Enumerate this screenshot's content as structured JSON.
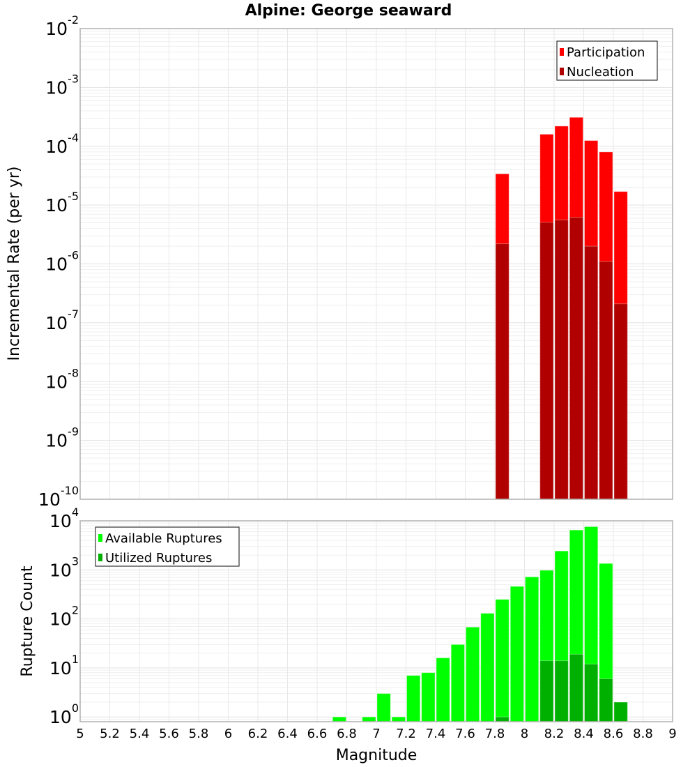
{
  "chart_data": [
    {
      "type": "bar",
      "title": "Alpine: George seaward",
      "xlabel": "Magnitude",
      "ylabel": "Incremental Rate (per yr)",
      "yscale": "log",
      "xlim": [
        5,
        9
      ],
      "ylim": [
        1e-10,
        0.01
      ],
      "ytick_exponents": [
        -2,
        -3,
        -4,
        -5,
        -6,
        -7,
        -8,
        -9,
        -10
      ],
      "grid": true,
      "legend_position": "top-right",
      "x": [
        7.85,
        8.15,
        8.25,
        8.35,
        8.45,
        8.55,
        8.65
      ],
      "series": [
        {
          "name": "Participation",
          "color": "#ff0000",
          "values": [
            3.4e-05,
            0.00016,
            0.00022,
            0.00031,
            0.000125,
            8e-05,
            1.7e-05
          ]
        },
        {
          "name": "Nucleation",
          "color": "#b00000",
          "values": [
            2.2e-06,
            5.1e-06,
            5.6e-06,
            6.2e-06,
            2e-06,
            1.1e-06,
            2.1e-07
          ]
        }
      ]
    },
    {
      "type": "bar",
      "xlabel": "Magnitude",
      "ylabel": "Rupture Count",
      "yscale": "log",
      "xlim": [
        5,
        9
      ],
      "ylim": [
        0.8,
        10000
      ],
      "ytick_exponents": [
        4,
        3,
        2,
        1,
        0
      ],
      "xticks": [
        "5",
        "5.2",
        "5.4",
        "5.6",
        "5.8",
        "6",
        "6.2",
        "6.4",
        "6.6",
        "6.8",
        "7",
        "7.2",
        "7.4",
        "7.6",
        "7.8",
        "8",
        "8.2",
        "8.4",
        "8.6",
        "8.8",
        "9"
      ],
      "grid": true,
      "legend_position": "top-left",
      "x": [
        6.75,
        6.95,
        7.05,
        7.15,
        7.25,
        7.35,
        7.45,
        7.55,
        7.65,
        7.75,
        7.85,
        7.95,
        8.05,
        8.15,
        8.25,
        8.35,
        8.45,
        8.55,
        8.65
      ],
      "series": [
        {
          "name": "Available Ruptures",
          "color": "#00ff00",
          "values": [
            1,
            1,
            3,
            1,
            7,
            8,
            16,
            30,
            68,
            130,
            250,
            460,
            720,
            980,
            2430,
            6500,
            7600,
            1350,
            2
          ]
        },
        {
          "name": "Utilized Ruptures",
          "color": "#00b000",
          "values": [
            0,
            0,
            0,
            0,
            0,
            0,
            0,
            0,
            0,
            0,
            1,
            0,
            0,
            14,
            14,
            19,
            12,
            6,
            2
          ]
        }
      ]
    }
  ]
}
